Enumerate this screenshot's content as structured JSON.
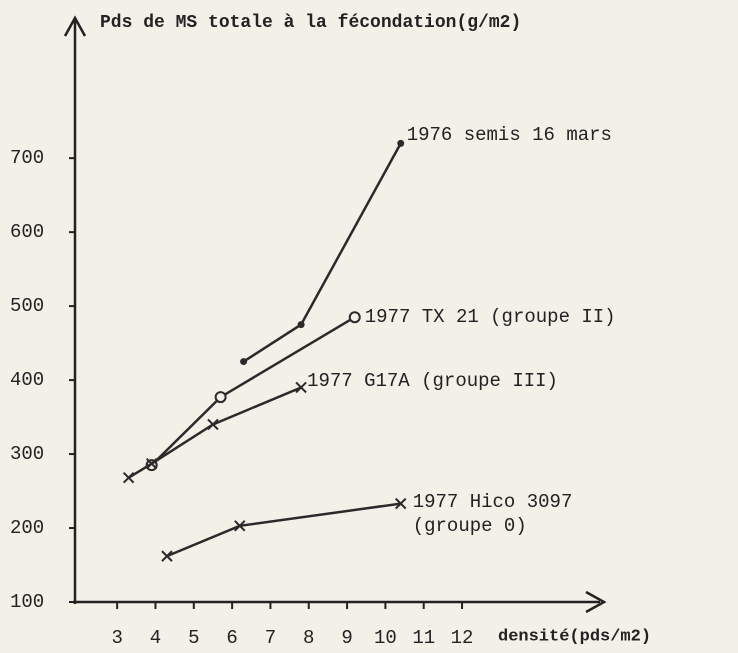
{
  "chart_data": {
    "type": "line",
    "ylabel": "Pds de MS totale à la fécondation(g/m2)",
    "xlabel": "densité(pds/m2)",
    "xlim": [
      1.9,
      15.6
    ],
    "xticks": [
      3,
      4,
      5,
      6,
      7,
      8,
      9,
      10,
      11,
      12
    ],
    "ylim": [
      100,
      880
    ],
    "yticks": [
      100,
      200,
      300,
      400,
      500,
      600,
      700
    ],
    "grid": false,
    "series": [
      {
        "name": "1976 semis 16 mars",
        "color": "#2a2a2a",
        "marker": "dot",
        "x": [
          6.3,
          7.8,
          10.4
        ],
        "values": [
          425,
          475,
          720
        ]
      },
      {
        "name": "1977 TX 21 (groupe II)",
        "color": "#2a2a2a",
        "marker": "circle",
        "x": [
          3.9,
          5.7,
          9.2
        ],
        "values": [
          285,
          377,
          485
        ]
      },
      {
        "name": "1977 G17A (groupe III)",
        "color": "#2a2a2a",
        "marker": "cross",
        "x": [
          3.3,
          3.9,
          5.5,
          7.8
        ],
        "values": [
          268,
          287,
          340,
          390
        ]
      },
      {
        "name": "1977 Hico 3097 (groupe 0)",
        "color": "#2a2a2a",
        "marker": "cross",
        "x": [
          4.3,
          6.2,
          10.4
        ],
        "values": [
          162,
          203,
          233
        ]
      }
    ]
  }
}
